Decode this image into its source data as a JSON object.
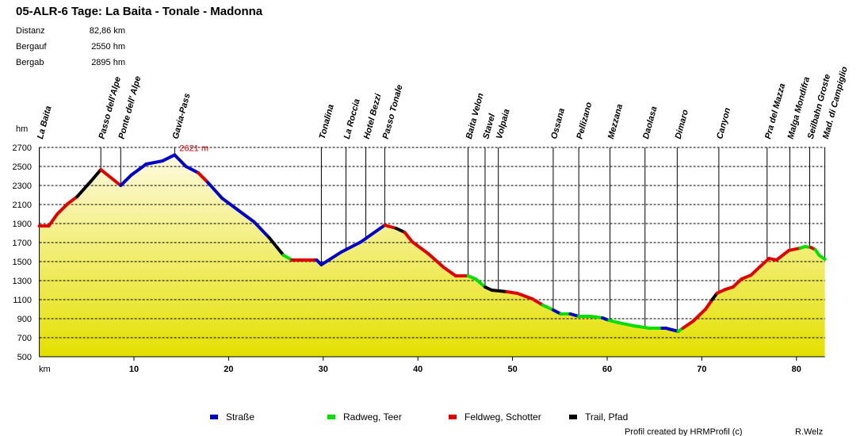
{
  "chart_data": {
    "type": "profile",
    "title": "05-ALR-6 Tage: La Baita - Tonale - Madonna",
    "stats": [
      {
        "label": "Distanz",
        "value": "82,86 km"
      },
      {
        "label": "Bergauf",
        "value": "2550 hm"
      },
      {
        "label": "Bergab",
        "value": "2895 hm"
      }
    ],
    "y_label": "hm",
    "x_label": "km",
    "xlim": [
      0,
      83
    ],
    "ylim": [
      500,
      2700
    ],
    "xticks": [
      10,
      20,
      30,
      40,
      50,
      60,
      70,
      80
    ],
    "yticks": [
      500,
      700,
      900,
      1100,
      1300,
      1500,
      1700,
      1900,
      2100,
      2300,
      2500,
      2700
    ],
    "grid": true,
    "x": [
      0,
      1.0,
      1.9,
      3.0,
      4.0,
      5.5,
      6.5,
      8.6,
      9.7,
      11.3,
      13.0,
      14.3,
      15.5,
      16.8,
      17.8,
      19.3,
      21.0,
      22.7,
      24.3,
      25.8,
      26.7,
      29.3,
      29.8,
      31.9,
      34.0,
      36.5,
      37.7,
      38.6,
      39.4,
      41.1,
      42.7,
      44.0,
      45.3,
      46.1,
      47.1,
      47.8,
      49.4,
      50.5,
      52.1,
      53.2,
      54.3,
      55.1,
      56.1,
      57.0,
      58.2,
      59.5,
      60.2,
      61.2,
      62.8,
      64.5,
      65.8,
      66.2,
      67.5,
      68.0,
      69.1,
      70.4,
      71.1,
      71.6,
      72.5,
      73.3,
      74.2,
      75.2,
      76.1,
      77.1,
      77.9,
      79.2,
      80.4,
      80.9,
      81.5,
      82.0,
      82.4,
      83.0
    ],
    "values": [
      1875,
      1875,
      2000,
      2108,
      2183,
      2350,
      2467,
      2300,
      2408,
      2525,
      2558,
      2621,
      2500,
      2433,
      2333,
      2167,
      2042,
      1917,
      1750,
      1567,
      1517,
      1517,
      1467,
      1600,
      1708,
      1883,
      1850,
      1808,
      1708,
      1583,
      1442,
      1350,
      1350,
      1317,
      1233,
      1200,
      1183,
      1167,
      1108,
      1042,
      992,
      950,
      950,
      925,
      925,
      908,
      883,
      858,
      825,
      800,
      800,
      800,
      767,
      800,
      875,
      1000,
      1100,
      1167,
      1208,
      1233,
      1317,
      1358,
      1442,
      1533,
      1517,
      1617,
      1642,
      1658,
      1650,
      1625,
      1567,
      1525
    ],
    "surface": [
      2,
      2,
      2,
      2,
      3,
      3,
      2,
      0,
      0,
      0,
      0,
      0,
      0,
      2,
      0,
      0,
      0,
      0,
      3,
      1,
      2,
      0,
      0,
      0,
      0,
      2,
      3,
      2,
      2,
      2,
      2,
      2,
      1,
      1,
      3,
      3,
      2,
      2,
      2,
      1,
      0,
      1,
      0,
      1,
      1,
      0,
      1,
      1,
      1,
      1,
      0,
      0,
      1,
      2,
      2,
      2,
      3,
      2,
      2,
      2,
      2,
      2,
      2,
      2,
      2,
      2,
      1,
      1,
      2,
      1,
      1
    ],
    "series": [
      {
        "name": "Straße",
        "color": "#0000cc"
      },
      {
        "name": "Radweg, Teer",
        "color": "#00e000"
      },
      {
        "name": "Feldweg, Schotter",
        "color": "#e00000"
      },
      {
        "name": "Trail, Pfad",
        "color": "#000000"
      }
    ],
    "fill_colors": [
      "#fffbe8",
      "#e4e000"
    ],
    "annotation": {
      "x": 14.3,
      "value": 2621,
      "label": "2621 m",
      "color": "#e00000"
    },
    "waypoints": [
      {
        "name": "La Baita",
        "km": 0
      },
      {
        "name": "Passo dell'Alpe",
        "km": 6.5
      },
      {
        "name": "Ponte dell' Alpe",
        "km": 8.6
      },
      {
        "name": "Gavia-Pass",
        "km": 14.3
      },
      {
        "name": "Tonalina",
        "km": 29.8
      },
      {
        "name": "La Roccia",
        "km": 32.4
      },
      {
        "name": "Hotel Bezzi",
        "km": 34.5
      },
      {
        "name": "Passo Tonale",
        "km": 36.5
      },
      {
        "name": "Baita Velon",
        "km": 45.3
      },
      {
        "name": "Stavel",
        "km": 47.1
      },
      {
        "name": "Volpaia",
        "km": 48.5
      },
      {
        "name": "Ossana",
        "km": 54.3
      },
      {
        "name": "Pellizano",
        "km": 57.0
      },
      {
        "name": "Mezzana",
        "km": 60.3
      },
      {
        "name": "Daolasa",
        "km": 64.0
      },
      {
        "name": "Dimaro",
        "km": 67.4
      },
      {
        "name": "Canyon",
        "km": 71.8
      },
      {
        "name": "Pra del Mazza",
        "km": 76.9
      },
      {
        "name": "Malga Mondifra",
        "km": 79.3
      },
      {
        "name": "Seilbahn Groste",
        "km": 81.4
      },
      {
        "name": "Mad. di Campiglio",
        "km": 83.0
      }
    ],
    "footer": "Profil created by HRMProfil (c)",
    "author": "R.Welz"
  }
}
